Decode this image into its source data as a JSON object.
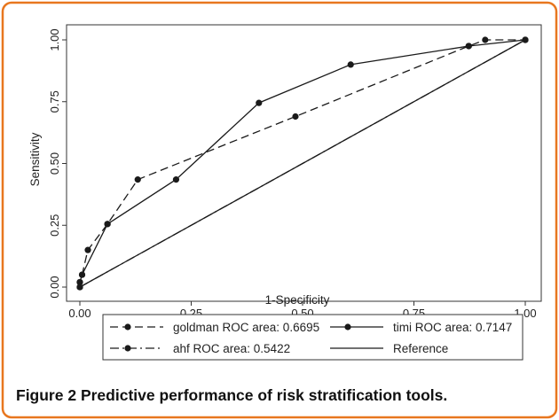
{
  "caption": {
    "label": "Figure 2",
    "text": "Predictive performance of risk stratification tools."
  },
  "chart_data": {
    "type": "line",
    "title": "",
    "xlabel": "1-Specificity",
    "ylabel": "Sensitivity",
    "xlim": [
      0,
      1
    ],
    "ylim": [
      0,
      1
    ],
    "xticks": [
      "0.00",
      "0.25",
      "0.50",
      "0.75",
      "1.00"
    ],
    "yticks": [
      "0.00",
      "0.25",
      "0.50",
      "0.75",
      "1.00"
    ],
    "grid": false,
    "legend_position": "bottom",
    "series": [
      {
        "name": "goldman ROC area: 0.6695",
        "style": "dashed",
        "markers": true,
        "x": [
          0,
          0,
          0.005,
          0.018,
          0.062,
          0.13,
          0.484,
          0.873,
          0.91,
          1.0
        ],
        "y": [
          0,
          0.02,
          0.05,
          0.15,
          0.255,
          0.435,
          0.69,
          0.975,
          1.0,
          1.0
        ]
      },
      {
        "name": "timi ROC area: 0.7147",
        "style": "solid",
        "markers": true,
        "x": [
          0,
          0,
          0.005,
          0.062,
          0.216,
          0.402,
          0.608,
          0.873,
          1.0
        ],
        "y": [
          0,
          0.02,
          0.05,
          0.255,
          0.435,
          0.745,
          0.9,
          0.975,
          1.0
        ]
      },
      {
        "name": "ahf ROC area: 0.5422",
        "style": "dashdot",
        "markers": true,
        "x": [
          0,
          1.0
        ],
        "y": [
          0,
          1.0
        ]
      },
      {
        "name": "Reference",
        "style": "solid",
        "markers": false,
        "x": [
          0,
          1.0
        ],
        "y": [
          0,
          1.0
        ]
      }
    ]
  },
  "colors": {
    "frame": "#e8771f",
    "line": "#1a1a1a",
    "axis": "#333333"
  }
}
